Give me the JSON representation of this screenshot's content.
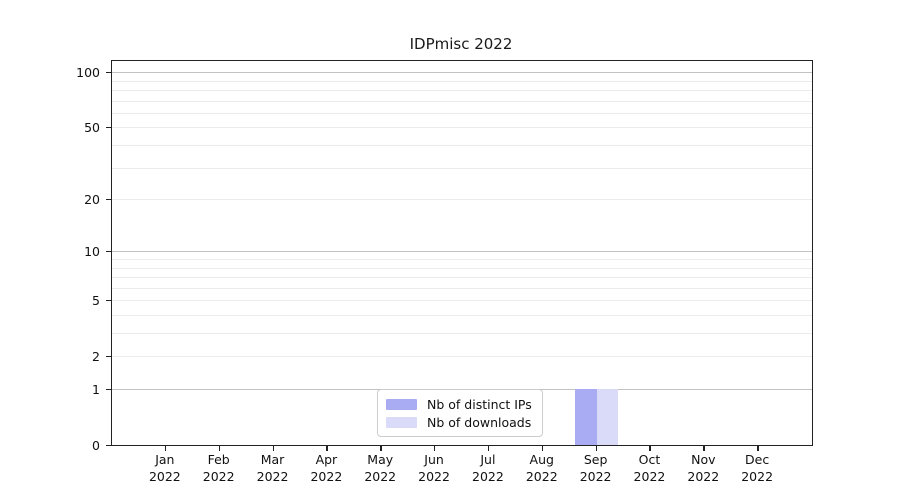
{
  "window": {
    "background": "#ffffff"
  },
  "chart_data": {
    "type": "bar",
    "title": "IDPmisc 2022",
    "year_label": "2022",
    "months": [
      "Jan",
      "Feb",
      "Mar",
      "Apr",
      "May",
      "Jun",
      "Jul",
      "Aug",
      "Sep",
      "Oct",
      "Nov",
      "Dec"
    ],
    "series": [
      {
        "name": "Nb of distinct IPs",
        "color": "#a9abf3",
        "values": [
          0,
          0,
          0,
          0,
          0,
          0,
          0,
          0,
          1,
          0,
          0,
          0
        ]
      },
      {
        "name": "Nb of downloads",
        "color": "#d9dbf9",
        "values": [
          0,
          0,
          0,
          0,
          0,
          0,
          0,
          0,
          1,
          0,
          0,
          0
        ]
      }
    ],
    "yscale": "log1p",
    "ylim": [
      0,
      115
    ],
    "yticks": [
      0,
      1,
      2,
      5,
      10,
      20,
      50,
      100
    ],
    "gridlines": {
      "major": [
        1,
        10,
        100
      ],
      "minor": [
        2,
        3,
        4,
        5,
        6,
        7,
        8,
        9,
        20,
        30,
        40,
        50,
        60,
        70,
        80,
        90
      ]
    },
    "grid": "horizontal",
    "legend_position": "lower center",
    "colors": {
      "spine": "#222222",
      "grid_major": "#c2c2c2",
      "grid_minor": "#ececec",
      "text": "#111111",
      "legend_border": "#cccccc"
    }
  }
}
